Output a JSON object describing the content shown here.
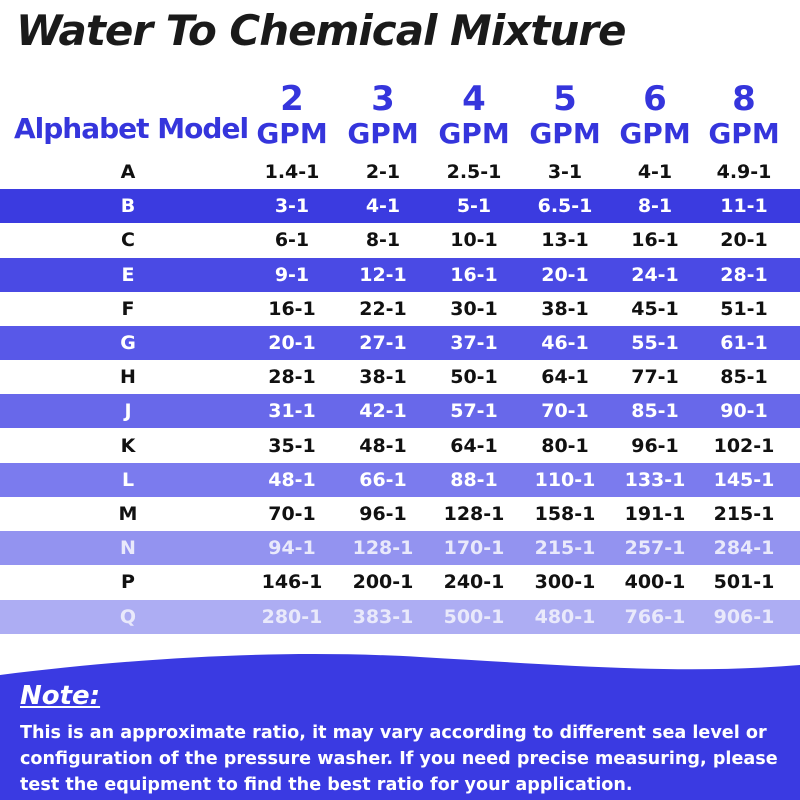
{
  "title": "Water To Chemical Mixture",
  "header": {
    "model_label": "Alphabet Model",
    "gpm_columns": [
      {
        "number": "2",
        "unit": "GPM"
      },
      {
        "number": "3",
        "unit": "GPM"
      },
      {
        "number": "4",
        "unit": "GPM"
      },
      {
        "number": "5",
        "unit": "GPM"
      },
      {
        "number": "6",
        "unit": "GPM"
      },
      {
        "number": "8",
        "unit": "GPM"
      }
    ]
  },
  "rows": [
    {
      "model": "A",
      "values": [
        "1.4-1",
        "2-1",
        "2.5-1",
        "3-1",
        "4-1",
        "4.9-1"
      ]
    },
    {
      "model": "B",
      "values": [
        "3-1",
        "4-1",
        "5-1",
        "6.5-1",
        "8-1",
        "11-1"
      ]
    },
    {
      "model": "C",
      "values": [
        "6-1",
        "8-1",
        "10-1",
        "13-1",
        "16-1",
        "20-1"
      ]
    },
    {
      "model": "E",
      "values": [
        "9-1",
        "12-1",
        "16-1",
        "20-1",
        "24-1",
        "28-1"
      ]
    },
    {
      "model": "F",
      "values": [
        "16-1",
        "22-1",
        "30-1",
        "38-1",
        "45-1",
        "51-1"
      ]
    },
    {
      "model": "G",
      "values": [
        "20-1",
        "27-1",
        "37-1",
        "46-1",
        "55-1",
        "61-1"
      ]
    },
    {
      "model": "H",
      "values": [
        "28-1",
        "38-1",
        "50-1",
        "64-1",
        "77-1",
        "85-1"
      ]
    },
    {
      "model": "J",
      "values": [
        "31-1",
        "42-1",
        "57-1",
        "70-1",
        "85-1",
        "90-1"
      ]
    },
    {
      "model": "K",
      "values": [
        "35-1",
        "48-1",
        "64-1",
        "80-1",
        "96-1",
        "102-1"
      ]
    },
    {
      "model": "L",
      "values": [
        "48-1",
        "66-1",
        "88-1",
        "110-1",
        "133-1",
        "145-1"
      ]
    },
    {
      "model": "M",
      "values": [
        "70-1",
        "96-1",
        "128-1",
        "158-1",
        "191-1",
        "215-1"
      ]
    },
    {
      "model": "N",
      "values": [
        "94-1",
        "128-1",
        "170-1",
        "215-1",
        "257-1",
        "284-1"
      ]
    },
    {
      "model": "P",
      "values": [
        "146-1",
        "200-1",
        "240-1",
        "300-1",
        "400-1",
        "501-1"
      ]
    },
    {
      "model": "Q",
      "values": [
        "280-1",
        "383-1",
        "500-1",
        "480-1",
        "766-1",
        "906-1"
      ]
    }
  ],
  "band_colors": [
    "#3b3be0",
    "#4a4ae4",
    "#5858e8",
    "#6868ea",
    "#7b7bee",
    "#9393f0",
    "#adadf3"
  ],
  "note": {
    "title": "Note:",
    "text": "This is an approximate ratio, it may vary according to different sea level or configuration of the pressure washer. If you need precise measuring, please test the equipment to find the best ratio for your application."
  },
  "colors": {
    "header_blue": "#3535dc",
    "note_panel": "#3a3ae2",
    "title_text": "#1a1a1a",
    "light_text": "#ffffff"
  }
}
